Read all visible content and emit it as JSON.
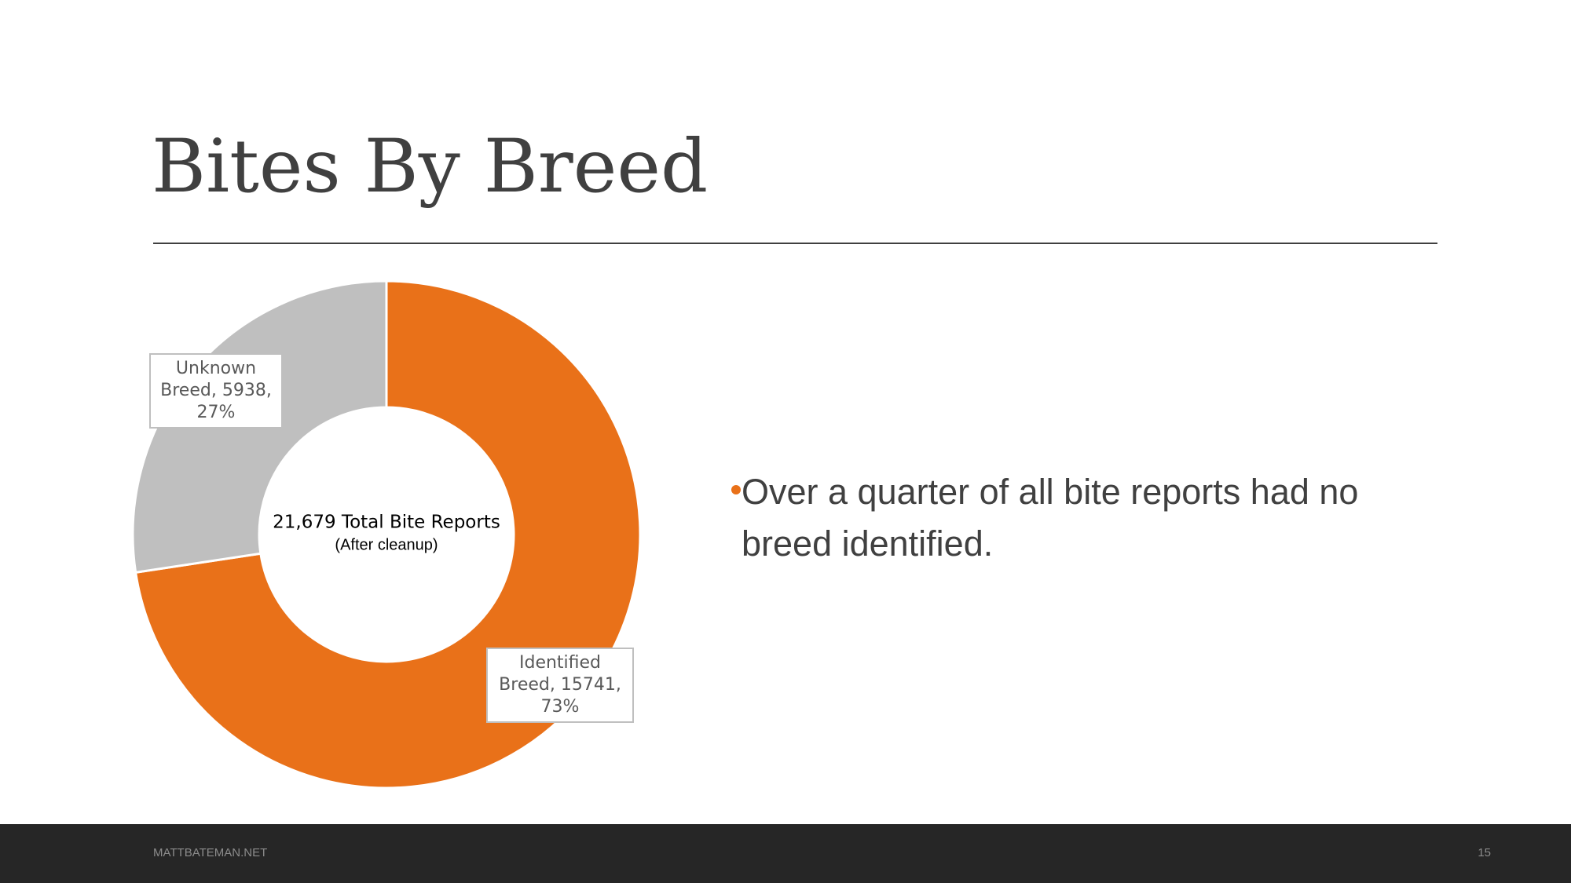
{
  "slide": {
    "title": "Bites By Breed",
    "bullet": "Over a quarter of all bite reports had no breed identified.",
    "footer": "MATTBATEMAN.NET",
    "page_number": "15"
  },
  "chart_data": {
    "type": "donut",
    "categories": [
      "Identified Breed",
      "Unknown Breed"
    ],
    "values": [
      15741,
      5938
    ],
    "value_labels": [
      "Identified Breed, 15741, 73%",
      "Unknown Breed, 5938, 27%"
    ],
    "colors": [
      "#E97119",
      "#BFBFBF"
    ],
    "annotations": [
      "21,679 Total Bite Reports",
      "(After cleanup)"
    ]
  }
}
